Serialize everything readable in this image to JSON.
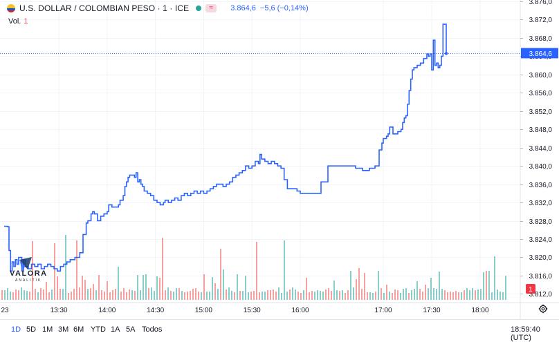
{
  "legend": {
    "title": "U.S. DOLLAR / COLOMBIAN PESO · 1 · ICE",
    "price": "3.864,6",
    "change": "−5,6 (−0,14%)",
    "status_dot_color": "#26a69a",
    "price_color": "#2962ff"
  },
  "volume": {
    "label": "Vol.",
    "value": "1"
  },
  "logo": {
    "text": "VALORA",
    "subtext": "ANALITIK"
  },
  "toolbar": {
    "ranges": [
      "1D",
      "5D",
      "1M",
      "3M",
      "6M",
      "YTD",
      "1A",
      "5A",
      "Todos"
    ],
    "active_range": "1D",
    "clock": "18:59:40 (UTC)"
  },
  "axis": {
    "y_ticks": [
      "3.876,0",
      "3.872,0",
      "3.868,0",
      "3.864,0",
      "3.860,0",
      "3.856,0",
      "3.852,0",
      "3.848,0",
      "3.844,0",
      "3.840,0",
      "3.836,0",
      "3.832,0",
      "3.828,0",
      "3.824,0",
      "3.820,0",
      "3.816,0",
      "3.812,0"
    ],
    "x_ticks": [
      "23",
      "13:30",
      "14:00",
      "14:30",
      "15:00",
      "15:30",
      "16:00",
      "17:00",
      "17:30",
      "18:00"
    ],
    "last_price_label": "3.864,6",
    "last_volume_label": "1"
  },
  "colors": {
    "line": "#2962ff",
    "volume_up": "#26a69a",
    "volume_down": "#ef5350",
    "grid": "#f0f3fa",
    "last_label_bg": "#2962ff",
    "volume_label_bg": "#f23645"
  },
  "chart_data": {
    "type": "line",
    "title": "U.S. DOLLAR / COLOMBIAN PESO · 1 · ICE",
    "xlabel": "",
    "ylabel": "",
    "ylim": [
      3811,
      3876
    ],
    "grid": true,
    "step": true,
    "series": [
      {
        "points": [
          [
            "12:56",
            3826.8
          ],
          [
            "12:58",
            3826.7
          ],
          [
            "12:59",
            3821.5
          ],
          [
            "13:00",
            3817.0
          ],
          [
            "13:01",
            3819.0
          ],
          [
            "13:02",
            3818.0
          ],
          [
            "13:03",
            3819.5
          ],
          [
            "13:04",
            3818.5
          ],
          [
            "13:05",
            3820.0
          ],
          [
            "13:07",
            3817.0
          ],
          [
            "13:08",
            3819.5
          ],
          [
            "13:09",
            3818.0
          ],
          [
            "13:11",
            3817.5
          ],
          [
            "13:13",
            3818.5
          ],
          [
            "13:15",
            3818.0
          ],
          [
            "13:17",
            3818.5
          ],
          [
            "13:19",
            3817.5
          ],
          [
            "13:21",
            3818.0
          ],
          [
            "13:23",
            3818.5
          ],
          [
            "13:25",
            3818.0
          ],
          [
            "13:27",
            3817.5
          ],
          [
            "13:29",
            3817.0
          ],
          [
            "13:31",
            3818.0
          ],
          [
            "13:33",
            3818.5
          ],
          [
            "13:35",
            3819.0
          ],
          [
            "13:37",
            3819.5
          ],
          [
            "13:40",
            3820.0
          ],
          [
            "13:42",
            3820.0
          ],
          [
            "13:43",
            3821.0
          ],
          [
            "13:45",
            3825.0
          ],
          [
            "13:47",
            3827.5
          ],
          [
            "13:48",
            3828.0
          ],
          [
            "13:50",
            3829.5
          ],
          [
            "13:51",
            3830.0
          ],
          [
            "13:52",
            3829.5
          ],
          [
            "13:54",
            3828.0
          ],
          [
            "13:56",
            3829.0
          ],
          [
            "13:58",
            3829.5
          ],
          [
            "14:00",
            3830.0
          ],
          [
            "14:01",
            3831.5
          ],
          [
            "14:03",
            3831.0
          ],
          [
            "14:05",
            3831.0
          ],
          [
            "14:07",
            3831.5
          ],
          [
            "14:08",
            3832.5
          ],
          [
            "14:10",
            3833.5
          ],
          [
            "14:11",
            3835.5
          ],
          [
            "14:12",
            3836.5
          ],
          [
            "14:13",
            3837.5
          ],
          [
            "14:14",
            3838.0
          ],
          [
            "14:16",
            3838.0
          ],
          [
            "14:17",
            3837.5
          ],
          [
            "14:18",
            3838.5
          ],
          [
            "14:19",
            3836.5
          ],
          [
            "14:20",
            3837.0
          ],
          [
            "14:21",
            3836.0
          ],
          [
            "14:22",
            3835.5
          ],
          [
            "14:23",
            3834.5
          ],
          [
            "14:25",
            3834.0
          ],
          [
            "14:27",
            3833.5
          ],
          [
            "14:29",
            3832.5
          ],
          [
            "14:31",
            3832.0
          ],
          [
            "14:33",
            3831.5
          ],
          [
            "14:35",
            3832.0
          ],
          [
            "14:36",
            3832.5
          ],
          [
            "14:38",
            3832.0
          ],
          [
            "14:40",
            3832.5
          ],
          [
            "14:42",
            3833.0
          ],
          [
            "14:44",
            3832.5
          ],
          [
            "14:46",
            3833.5
          ],
          [
            "14:48",
            3834.0
          ],
          [
            "14:50",
            3833.5
          ],
          [
            "14:52",
            3834.0
          ],
          [
            "14:54",
            3834.5
          ],
          [
            "14:56",
            3834.0
          ],
          [
            "14:58",
            3834.5
          ],
          [
            "15:00",
            3834.0
          ],
          [
            "15:02",
            3834.5
          ],
          [
            "15:04",
            3835.0
          ],
          [
            "15:06",
            3835.5
          ],
          [
            "15:08",
            3836.0
          ],
          [
            "15:10",
            3836.0
          ],
          [
            "15:12",
            3835.5
          ],
          [
            "15:14",
            3836.0
          ],
          [
            "15:16",
            3836.5
          ],
          [
            "15:18",
            3837.5
          ],
          [
            "15:20",
            3838.0
          ],
          [
            "15:22",
            3838.5
          ],
          [
            "15:24",
            3839.0
          ],
          [
            "15:26",
            3840.0
          ],
          [
            "15:28",
            3839.5
          ],
          [
            "15:30",
            3840.0
          ],
          [
            "15:32",
            3841.0
          ],
          [
            "15:34",
            3840.5
          ],
          [
            "15:35",
            3842.5
          ],
          [
            "15:36",
            3841.5
          ],
          [
            "15:38",
            3841.0
          ],
          [
            "15:40",
            3840.5
          ],
          [
            "15:42",
            3841.0
          ],
          [
            "15:44",
            3840.5
          ],
          [
            "15:46",
            3840.0
          ],
          [
            "15:48",
            3839.5
          ],
          [
            "15:50",
            3837.0
          ],
          [
            "15:52",
            3835.0
          ],
          [
            "15:55",
            3835.0
          ],
          [
            "15:58",
            3834.5
          ],
          [
            "16:00",
            3834.0
          ],
          [
            "16:15",
            3836.5
          ],
          [
            "16:20",
            3840.0
          ],
          [
            "16:25",
            3840.0
          ],
          [
            "16:30",
            3840.0
          ],
          [
            "16:40",
            3839.5
          ],
          [
            "16:45",
            3839.0
          ],
          [
            "16:50",
            3839.5
          ],
          [
            "16:54",
            3840.0
          ],
          [
            "16:57",
            3843.5
          ],
          [
            "16:59",
            3845.0
          ],
          [
            "17:00",
            3846.0
          ],
          [
            "17:02",
            3846.5
          ],
          [
            "17:03",
            3847.0
          ],
          [
            "17:04",
            3848.5
          ],
          [
            "17:06",
            3847.0
          ],
          [
            "17:09",
            3847.5
          ],
          [
            "17:11",
            3848.0
          ],
          [
            "17:12",
            3849.5
          ],
          [
            "17:13",
            3850.5
          ],
          [
            "17:14",
            3851.0
          ],
          [
            "17:15",
            3853.5
          ],
          [
            "17:16",
            3856.5
          ],
          [
            "17:17",
            3859.0
          ],
          [
            "17:18",
            3861.0
          ],
          [
            "17:19",
            3861.5
          ],
          [
            "17:21",
            3862.0
          ],
          [
            "17:23",
            3862.5
          ],
          [
            "17:25",
            3863.5
          ],
          [
            "17:27",
            3864.5
          ],
          [
            "17:28",
            3864.0
          ],
          [
            "17:29",
            3864.5
          ],
          [
            "17:30",
            3861.0
          ],
          [
            "17:31",
            3867.5
          ],
          [
            "17:32",
            3862.0
          ],
          [
            "17:33",
            3862.5
          ],
          [
            "17:34",
            3861.5
          ],
          [
            "17:35",
            3862.0
          ],
          [
            "17:36",
            3864.0
          ],
          [
            "17:37",
            3871.0
          ],
          [
            "17:38",
            3871.0
          ],
          [
            "17:39",
            3864.6
          ]
        ]
      }
    ]
  }
}
